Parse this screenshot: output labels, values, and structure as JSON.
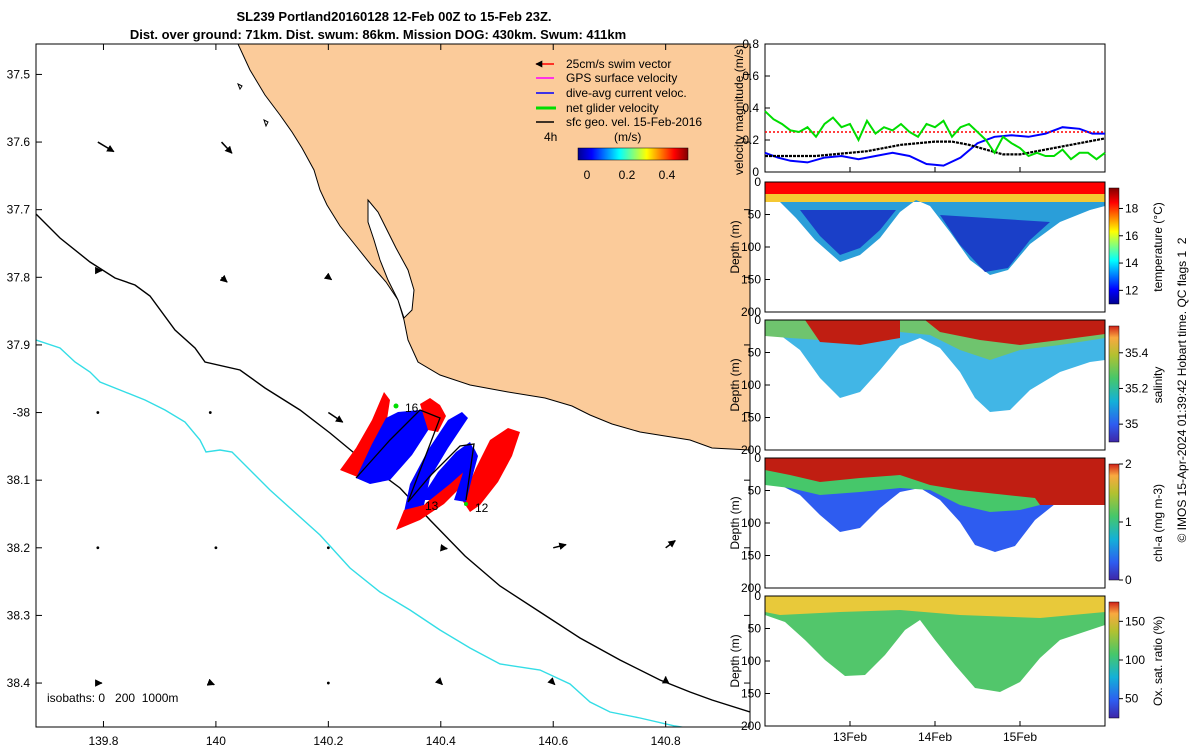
{
  "title": {
    "line1": "SL239 Portland20160128 12-Feb 00Z to 15-Feb 23Z.",
    "line2": "Dist. over ground: 71km. Dist. swum: 86km. Mission DOG: 430km. Swum: 411km"
  },
  "colors": {
    "land": "#fbcb9a",
    "isobath_200": "#000000",
    "isobath_1000": "#33dde6",
    "swim_vector": "#ff0000",
    "gps_velocity": "#ff00ff",
    "dive_avg_current": "#0000ff",
    "net_velocity": "#00dd00",
    "geo_velocity": "#000000"
  },
  "chart_data": [
    {
      "type": "scatter",
      "name": "glider track map",
      "xlabel": "",
      "ylabel": "",
      "xlim": [
        139.68,
        140.95
      ],
      "ylim": [
        -38.465,
        -37.455
      ],
      "xticks": [
        139.8,
        140,
        140.2,
        140.4,
        140.6,
        140.8
      ],
      "xtick_labels": [
        "139.8",
        "140",
        "140.2",
        "140.4",
        "140.6",
        "140.8"
      ],
      "yticks": [
        -37.5,
        -37.6,
        -37.7,
        -37.8,
        -37.9,
        -38,
        -38.1,
        -38.2,
        -38.3,
        -38.4
      ],
      "ytick_labels": [
        "37.5",
        "37.6",
        "37.7",
        "37.8",
        "37.9",
        "-38",
        "38.1",
        "38.2",
        "38.3",
        "38.4"
      ],
      "legend": {
        "placement": "top-right",
        "entries": [
          "25cm/s swim vector",
          "GPS surface velocity",
          "dive-avg current veloc.",
          "net glider velocity",
          "sfc geo. vel. 15-Feb-2016"
        ],
        "duration_label": "4h",
        "colorbar_unit": "(m/s)",
        "colorbar_ticks": [
          "0",
          "0.2",
          "0.4"
        ],
        "colorbar_range": [
          0,
          0.5
        ]
      },
      "isobath_label": "isobaths: 0   200  1000m",
      "point_labels": [
        {
          "text": "16",
          "lon": 140.37,
          "lat": -37.995
        },
        {
          "text": "13",
          "lon": 140.39,
          "lat": -38.135
        },
        {
          "text": "12",
          "lon": 140.5,
          "lat": -38.135
        }
      ],
      "geo_vectors": [
        {
          "lon": 139.79,
          "lat": -37.6,
          "u": 0.2,
          "v": -0.12
        },
        {
          "lon": 140.01,
          "lat": -37.6,
          "u": 0.13,
          "v": -0.14
        },
        {
          "lon": 139.79,
          "lat": -37.79,
          "u": 0.05,
          "v": 0.0
        },
        {
          "lon": 140.01,
          "lat": -37.8,
          "u": 0.07,
          "v": -0.06
        },
        {
          "lon": 140.2,
          "lat": -37.8,
          "u": 0.04,
          "v": -0.03
        },
        {
          "lon": 139.79,
          "lat": -38.0,
          "u": 0.03,
          "v": 0.0
        },
        {
          "lon": 139.99,
          "lat": -38.0,
          "u": 0.02,
          "v": 0.0
        },
        {
          "lon": 140.2,
          "lat": -38.0,
          "u": 0.18,
          "v": -0.12
        },
        {
          "lon": 139.79,
          "lat": -38.2,
          "u": 0.02,
          "v": 0.0
        },
        {
          "lon": 140.0,
          "lat": -38.2,
          "u": 0.02,
          "v": 0.0
        },
        {
          "lon": 140.2,
          "lat": -38.2,
          "u": 0.02,
          "v": 0.0
        },
        {
          "lon": 140.4,
          "lat": -38.2,
          "u": 0.08,
          "v": -0.01
        },
        {
          "lon": 140.6,
          "lat": -38.2,
          "u": 0.16,
          "v": 0.04
        },
        {
          "lon": 140.8,
          "lat": -38.2,
          "u": 0.12,
          "v": 0.09
        },
        {
          "lon": 139.79,
          "lat": -38.4,
          "u": 0.05,
          "v": 0.0
        },
        {
          "lon": 139.99,
          "lat": -38.4,
          "u": 0.05,
          "v": -0.02
        },
        {
          "lon": 140.2,
          "lat": -38.4,
          "u": 0.03,
          "v": 0.0
        },
        {
          "lon": 140.4,
          "lat": -38.4,
          "u": 0.02,
          "v": -0.02
        },
        {
          "lon": 140.6,
          "lat": -38.4,
          "u": 0.02,
          "v": -0.02
        },
        {
          "lon": 140.8,
          "lat": -38.4,
          "u": 0.0,
          "v": 0.08
        }
      ]
    },
    {
      "type": "line",
      "name": "velocity magnitude timeseries",
      "ylabel": "velocity magnitude (m/s)",
      "xlim": [
        12.0,
        16.0
      ],
      "ylim": [
        0,
        0.8
      ],
      "yticks": [
        0,
        0.2,
        0.4,
        0.6,
        0.8
      ],
      "ytick_labels": [
        "0",
        "0.2",
        "0.4",
        "0.6",
        "0.8"
      ],
      "series": [
        {
          "name": "dive-avg current veloc.",
          "color": "#0000ff",
          "x": [
            12.0,
            12.15,
            12.3,
            12.5,
            12.7,
            12.9,
            13.1,
            13.3,
            13.5,
            13.7,
            13.9,
            14.1,
            14.3,
            14.5,
            14.7,
            14.9,
            15.1,
            15.3,
            15.5,
            15.7,
            15.85,
            16.0
          ],
          "y": [
            0.12,
            0.09,
            0.07,
            0.06,
            0.09,
            0.1,
            0.08,
            0.1,
            0.12,
            0.1,
            0.05,
            0.04,
            0.09,
            0.18,
            0.22,
            0.23,
            0.22,
            0.24,
            0.28,
            0.27,
            0.24,
            0.24
          ]
        },
        {
          "name": "sfc geo. vel.",
          "color": "#000000",
          "x": [
            12.0,
            12.2,
            12.4,
            12.6,
            12.8,
            13.0,
            13.2,
            13.4,
            13.6,
            13.8,
            14.0,
            14.2,
            14.4,
            14.6,
            14.8,
            15.0,
            15.2,
            15.4,
            15.6,
            15.8,
            16.0
          ],
          "y": [
            0.1,
            0.1,
            0.1,
            0.1,
            0.11,
            0.12,
            0.13,
            0.15,
            0.17,
            0.18,
            0.19,
            0.19,
            0.17,
            0.14,
            0.11,
            0.11,
            0.13,
            0.15,
            0.17,
            0.19,
            0.21
          ]
        },
        {
          "name": "swim vector",
          "color": "#ff0000",
          "x": [
            12.0,
            16.0
          ],
          "y": [
            0.25,
            0.25
          ]
        },
        {
          "name": "net glider velocity",
          "color": "#00dd00",
          "x": [
            12.0,
            12.1,
            12.2,
            12.3,
            12.4,
            12.5,
            12.6,
            12.7,
            12.8,
            12.9,
            13.0,
            13.1,
            13.2,
            13.3,
            13.4,
            13.5,
            13.6,
            13.7,
            13.8,
            13.9,
            14.0,
            14.1,
            14.2,
            14.3,
            14.4,
            14.5,
            14.6,
            14.7,
            14.8,
            14.9,
            15.0,
            15.1,
            15.2,
            15.3,
            15.4,
            15.5,
            15.6,
            15.7,
            15.8,
            15.9,
            16.0
          ],
          "y": [
            0.38,
            0.33,
            0.3,
            0.26,
            0.25,
            0.28,
            0.22,
            0.3,
            0.34,
            0.28,
            0.3,
            0.2,
            0.32,
            0.24,
            0.28,
            0.26,
            0.3,
            0.25,
            0.22,
            0.3,
            0.28,
            0.32,
            0.22,
            0.28,
            0.3,
            0.25,
            0.2,
            0.12,
            0.22,
            0.18,
            0.15,
            0.1,
            0.12,
            0.1,
            0.1,
            0.14,
            0.08,
            0.12,
            0.12,
            0.08,
            0.12
          ]
        }
      ]
    },
    {
      "type": "heatmap",
      "name": "temperature section",
      "ylabel": "Depth (m)",
      "colorbar_label": "temperature (°C)",
      "ylim": [
        0,
        200
      ],
      "yticks": [
        "0",
        "50",
        "100",
        "150",
        "200"
      ],
      "clim": [
        11,
        19.5
      ],
      "colorbar_ticks": [
        "12",
        "14",
        "16",
        "18"
      ],
      "colorbar_values": [
        12,
        14,
        16,
        18
      ]
    },
    {
      "type": "heatmap",
      "name": "salinity section",
      "ylabel": "Depth (m)",
      "colorbar_label": "salinity",
      "ylim": [
        0,
        200
      ],
      "yticks": [
        "0",
        "50",
        "100",
        "150",
        "200"
      ],
      "clim": [
        34.9,
        35.55
      ],
      "colorbar_ticks": [
        "35",
        "35.2",
        "35.4"
      ],
      "colorbar_values": [
        35,
        35.2,
        35.4
      ]
    },
    {
      "type": "heatmap",
      "name": "chlorophyll section",
      "ylabel": "Depth (m)",
      "colorbar_label": "chl-a (mg m-3)",
      "ylim": [
        0,
        200
      ],
      "yticks": [
        "0",
        "50",
        "100",
        "150",
        "200"
      ],
      "clim": [
        0,
        2
      ],
      "colorbar_ticks": [
        "0",
        "1",
        "2"
      ],
      "colorbar_values": [
        0,
        1,
        2
      ]
    },
    {
      "type": "heatmap",
      "name": "oxygen saturation section",
      "ylabel": "Depth (m)",
      "colorbar_label": "Ox. sat. ratio (%)",
      "ylim": [
        0,
        200
      ],
      "yticks": [
        "0",
        "50",
        "100",
        "150",
        "200"
      ],
      "clim": [
        25,
        175
      ],
      "colorbar_ticks": [
        "50",
        "100",
        "150"
      ],
      "colorbar_values": [
        50,
        100,
        150
      ],
      "xlim": [
        12.0,
        16.0
      ],
      "xticks": [
        13.0,
        14.0,
        15.0
      ],
      "xtick_labels": [
        "13Feb",
        "14Feb",
        "15Feb"
      ]
    }
  ],
  "footer": {
    "credit": "© IMOS 15-Apr-2024 01:39:42 Hobart time. QC flags 1  2"
  }
}
